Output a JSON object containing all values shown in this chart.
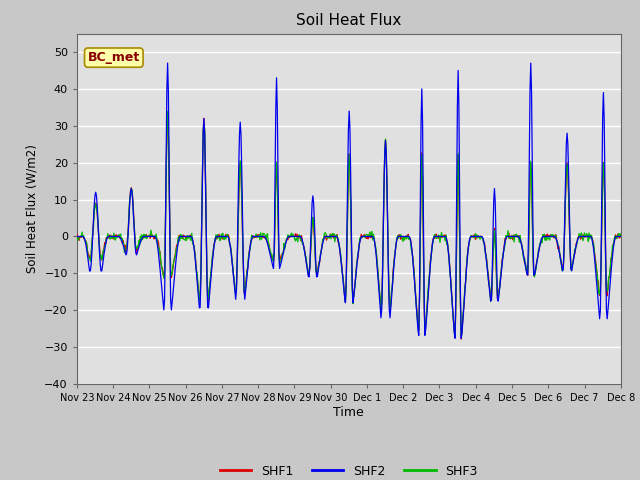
{
  "title": "Soil Heat Flux",
  "ylabel": "Soil Heat Flux (W/m2)",
  "xlabel": "Time",
  "ylim": [
    -40,
    55
  ],
  "yticks": [
    -40,
    -30,
    -20,
    -10,
    0,
    10,
    20,
    30,
    40,
    50
  ],
  "fig_bg_color": "#c8c8c8",
  "plot_bg_color": "#e0e0e0",
  "colors": {
    "SHF1": "#dd0000",
    "SHF2": "#0000ee",
    "SHF3": "#00bb00"
  },
  "annotation_text": "BC_met",
  "annotation_bg": "#ffffaa",
  "annotation_border": "#aa8800",
  "tick_labels": [
    "Nov 23",
    "Nov 24",
    "Nov 25",
    "Nov 26",
    "Nov 27",
    "Nov 28",
    "Nov 29",
    "Nov 30",
    "Dec 1",
    "Dec 2",
    "Dec 3",
    "Dec 4",
    "Dec 5",
    "Dec 6",
    "Dec 7",
    "Dec 8"
  ],
  "n_days": 15
}
